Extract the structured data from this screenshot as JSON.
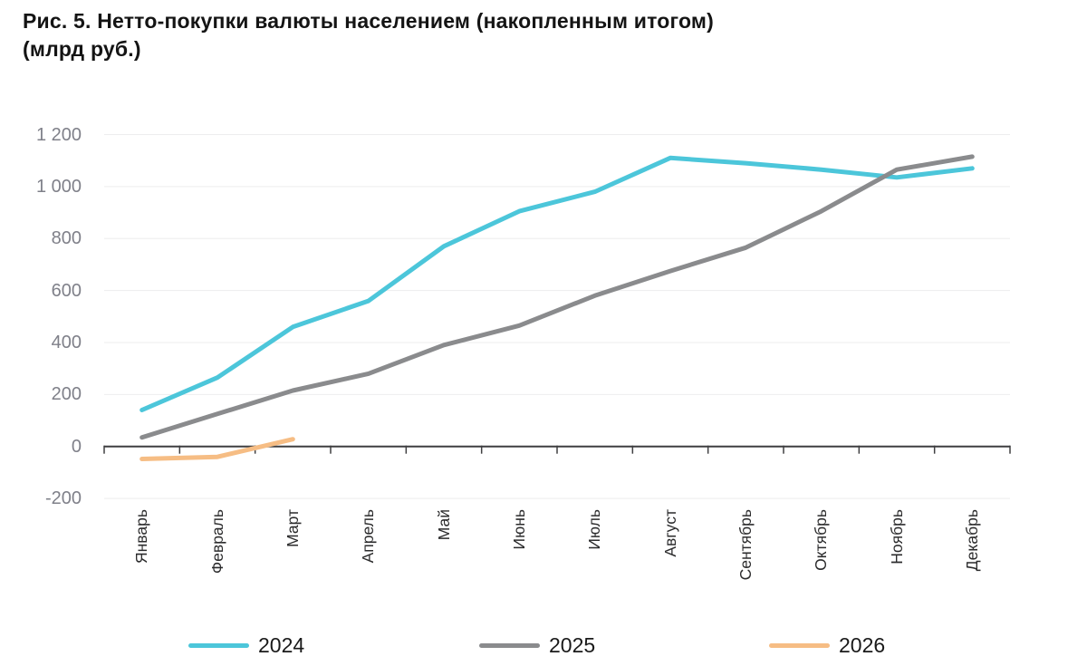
{
  "figure": {
    "title_line1": "Рис. 5. Нетто-покупки валюты населением (накопленным итогом)",
    "title_line2": "(млрд руб.)"
  },
  "chart_data": {
    "type": "line",
    "title": "Рис. 5. Нетто-покупки валюты населением (накопленным итогом) (млрд руб.)",
    "categories": [
      "Январь",
      "Февраль",
      "Март",
      "Апрель",
      "Май",
      "Июнь",
      "Июль",
      "Август",
      "Сентябрь",
      "Октябрь",
      "Ноябрь",
      "Декабрь"
    ],
    "y_ticks": [
      {
        "value": -200,
        "label": "-200"
      },
      {
        "value": 0,
        "label": "0"
      },
      {
        "value": 200,
        "label": "200"
      },
      {
        "value": 400,
        "label": "400"
      },
      {
        "value": 600,
        "label": "600"
      },
      {
        "value": 800,
        "label": "800"
      },
      {
        "value": 1000,
        "label": "1 000"
      },
      {
        "value": 1200,
        "label": "1 200"
      }
    ],
    "ylim": [
      -200,
      1200
    ],
    "grid": true,
    "legend_position": "bottom",
    "series": [
      {
        "name": "2024",
        "color": "#4CC6DA",
        "values": [
          140,
          265,
          460,
          560,
          770,
          905,
          980,
          1110,
          1090,
          1065,
          1035,
          1070
        ]
      },
      {
        "name": "2025",
        "color": "#8A8B8D",
        "values": [
          35,
          125,
          215,
          280,
          390,
          465,
          580,
          675,
          765,
          905,
          1065,
          1115
        ]
      },
      {
        "name": "2026",
        "color": "#F6BD84",
        "values": [
          -48,
          -40,
          28
        ]
      }
    ]
  },
  "style_colors": {
    "axis": "#3F3F41",
    "gridline": "#EDEDEE",
    "y_tick_text": "#7F8089",
    "month_text": "#2B2B2C",
    "title_text": "#141414",
    "legend_text": "#1A1A1A"
  }
}
